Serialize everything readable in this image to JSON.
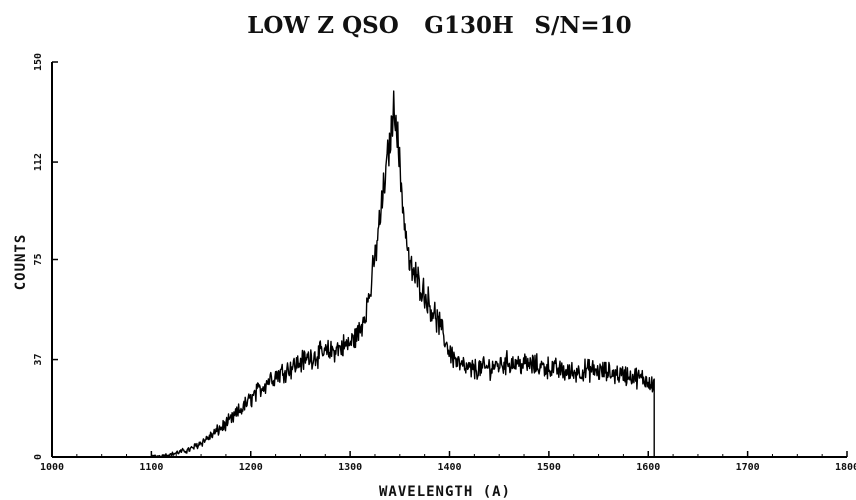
{
  "chart_data": {
    "type": "line",
    "title_parts": [
      "LOW Z QSO",
      "G130H",
      "S/N=10"
    ],
    "xlabel": "WAVELENGTH (A)",
    "ylabel": "COUNTS",
    "xlim": [
      1000,
      1800
    ],
    "ylim": [
      0,
      150
    ],
    "x_ticks": [
      1000,
      1100,
      1200,
      1300,
      1400,
      1500,
      1600,
      1700,
      1800
    ],
    "x_tick_labels": [
      "1000",
      "1100",
      "1200",
      "1300",
      "1400",
      "1500",
      "1600",
      "1700",
      "1800"
    ],
    "y_ticks": [
      0,
      37,
      75,
      112,
      150
    ],
    "y_tick_labels": [
      "0",
      "37",
      "75",
      "112",
      "150"
    ],
    "grid": false,
    "color": "#000000",
    "series": [
      {
        "x": [
          1100,
          1120,
          1140,
          1160,
          1180,
          1200,
          1220,
          1240,
          1260,
          1280,
          1300,
          1310,
          1320,
          1330,
          1340,
          1345,
          1350,
          1355,
          1360,
          1370,
          1380,
          1390,
          1400,
          1410,
          1420,
          1440,
          1460,
          1480,
          1500,
          1520,
          1540,
          1560,
          1580,
          1600,
          1606
        ],
        "values": [
          0,
          1,
          3,
          8,
          14,
          22,
          30,
          34,
          38,
          40,
          43,
          48,
          62,
          90,
          120,
          135,
          110,
          88,
          72,
          66,
          58,
          50,
          40,
          35,
          33,
          34,
          36,
          35,
          34,
          32,
          33,
          32,
          31,
          29,
          28
        ]
      }
    ]
  }
}
